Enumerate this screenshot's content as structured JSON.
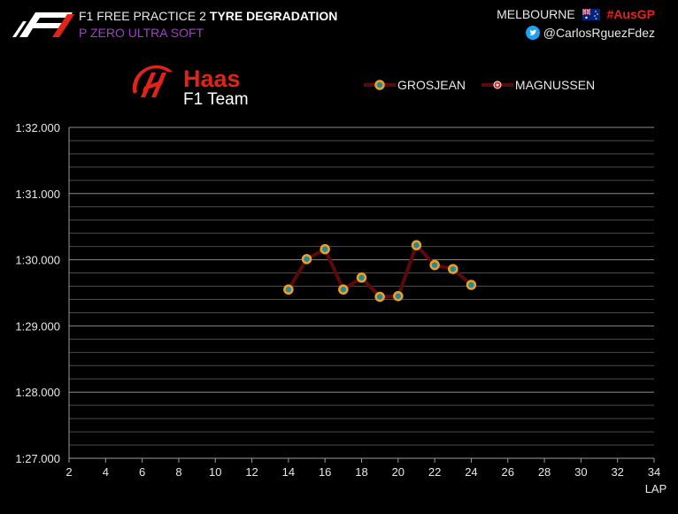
{
  "header": {
    "session": "F1 FREE PRACTICE 2",
    "title": "TYRE DEGRADATION",
    "compound": "P ZERO ULTRA SOFT",
    "location": "MELBOURNE",
    "hashtag": "#AusGP",
    "twitter": "@CarlosRguezFdez",
    "flag_icon": "australia-flag-icon",
    "twitter_icon": "twitter-bird-icon",
    "f1_logo_icon": "f1-logo-icon"
  },
  "team_logo": {
    "name": "Haas",
    "sub": "F1 Team",
    "icon": "haas-logo-icon",
    "color": "#e2231a"
  },
  "colors": {
    "background": "#000000",
    "line": "#5a0a0a",
    "marker_fill": "#1f8c9c",
    "marker_edge": "#f0a020",
    "magnussen_marker": "#e2231a",
    "compound": "#a040c8",
    "hashtag": "#e2231a"
  },
  "chart_data": {
    "type": "line",
    "xlabel": "LAP",
    "ylabel": "",
    "xlim": [
      2,
      34
    ],
    "ylim": [
      87,
      92
    ],
    "x_ticks": [
      2,
      4,
      6,
      8,
      10,
      12,
      14,
      16,
      18,
      20,
      22,
      24,
      26,
      28,
      30,
      32,
      34
    ],
    "y_ticks": [
      {
        "value": 87,
        "label": "1:27.000"
      },
      {
        "value": 88,
        "label": "1:28.000"
      },
      {
        "value": 89,
        "label": "1:29.000"
      },
      {
        "value": 90,
        "label": "1:30.000"
      },
      {
        "value": 91,
        "label": "1:31.000"
      },
      {
        "value": 92,
        "label": "1:32.000"
      }
    ],
    "grid": true,
    "legend_position": "top",
    "series": [
      {
        "name": "GROSJEAN",
        "x": [
          14,
          15,
          16,
          17,
          18,
          19,
          20,
          21,
          22,
          23,
          24
        ],
        "y": [
          89.55,
          90.01,
          90.16,
          89.55,
          89.73,
          89.44,
          89.45,
          90.22,
          89.92,
          89.86,
          89.62
        ]
      },
      {
        "name": "MAGNUSSEN",
        "x": [],
        "y": []
      }
    ]
  }
}
